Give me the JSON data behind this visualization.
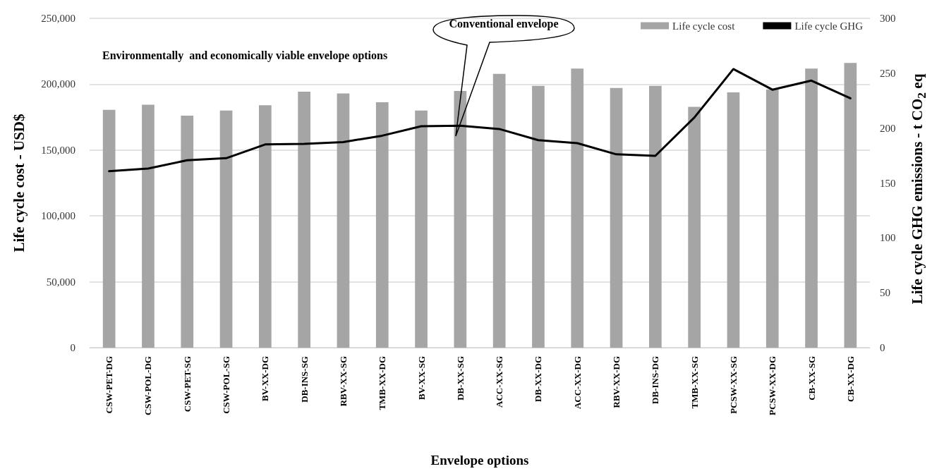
{
  "chart_data": {
    "type": "bar",
    "categories": [
      "CSW-PET-DG",
      "CSW-POL-DG",
      "CSW-PET-SG",
      "CSW-POL-SG",
      "BV-XX-DG",
      "DB-INS-SG",
      "RBV-XX-SG",
      "TMB-XX-DG",
      "BV-XX-SG",
      "DB-XX-SG",
      "ACC-XX-SG",
      "DB-XX-DG",
      "ACC-XX-DG",
      "RBV-XX-DG",
      "DB-INS-DG",
      "TMB-XX-SG",
      "PCSW-XX-SG",
      "PCSW-XX-DG",
      "CB-XX-SG",
      "CB-XX-DG"
    ],
    "series": [
      {
        "name": "Life cycle cost",
        "color": "#a5a5a5",
        "values": [
          180500,
          184400,
          176100,
          180000,
          184000,
          194300,
          193000,
          186300,
          180000,
          194800,
          207900,
          198700,
          211900,
          197100,
          198700,
          182800,
          193800,
          196000,
          211900,
          216200
        ]
      },
      {
        "name": "Life cycle GHG",
        "type": "line",
        "axis": "y2",
        "color": "#000000",
        "values": [
          160.7,
          163.2,
          170.7,
          172.6,
          185.1,
          185.6,
          187.3,
          193.1,
          201.7,
          202.2,
          199.2,
          189.0,
          186.3,
          176.1,
          174.7,
          209.7,
          253.8,
          235.0,
          243.3,
          227.2
        ]
      }
    ],
    "xlabel": "Envelope options",
    "ylabel": "Life cycle cost - USD$",
    "y2label": "Life cycle GHG  emissions - t CO$_{2}$ eq",
    "ylim": [
      0,
      250000
    ],
    "yticks": [
      {
        "value": 0,
        "label": "0"
      },
      {
        "value": 50000,
        "label": "50,000"
      },
      {
        "value": 100000,
        "label": "100,000"
      },
      {
        "value": 150000,
        "label": "150,000"
      },
      {
        "value": 200000,
        "label": "200,000"
      },
      {
        "value": 250000,
        "label": "250,000"
      }
    ],
    "y2lim": [
      0,
      300
    ],
    "y2ticks": [
      0,
      50,
      100,
      150,
      200,
      250,
      300
    ],
    "annotations": [
      "Environmentally  and economically viable envelope options",
      "Conventional envelope"
    ],
    "grid": "y",
    "legend": "top right",
    "marker": "none",
    "line_style": "solid"
  }
}
